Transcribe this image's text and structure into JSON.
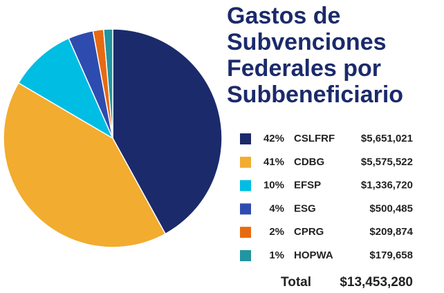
{
  "chart_data": {
    "type": "pie",
    "title": "Gastos de Subvenciones Federales por Subbeneficiario",
    "categories": [
      "CSLFRF",
      "CDBG",
      "EFSP",
      "ESG",
      "CPRG",
      "HOPWA"
    ],
    "values": [
      42,
      41,
      10,
      4,
      2,
      1
    ],
    "value_labels": [
      "42%",
      "41%",
      "10%",
      "4%",
      "2%",
      "1%"
    ],
    "amounts": [
      5651021,
      5575522,
      1336720,
      500485,
      209874,
      179658
    ],
    "amount_labels": [
      "$5,651,021",
      "$5,575,522",
      "$1,336,720",
      "$500,485",
      "$209,874",
      "$179,658"
    ],
    "colors": [
      "#1b2a6b",
      "#f2ac2f",
      "#00bde3",
      "#2e4cb0",
      "#e86a10",
      "#2195a0"
    ],
    "total_text": "Total",
    "total": 13453280,
    "total_label": "$13,453,280"
  }
}
